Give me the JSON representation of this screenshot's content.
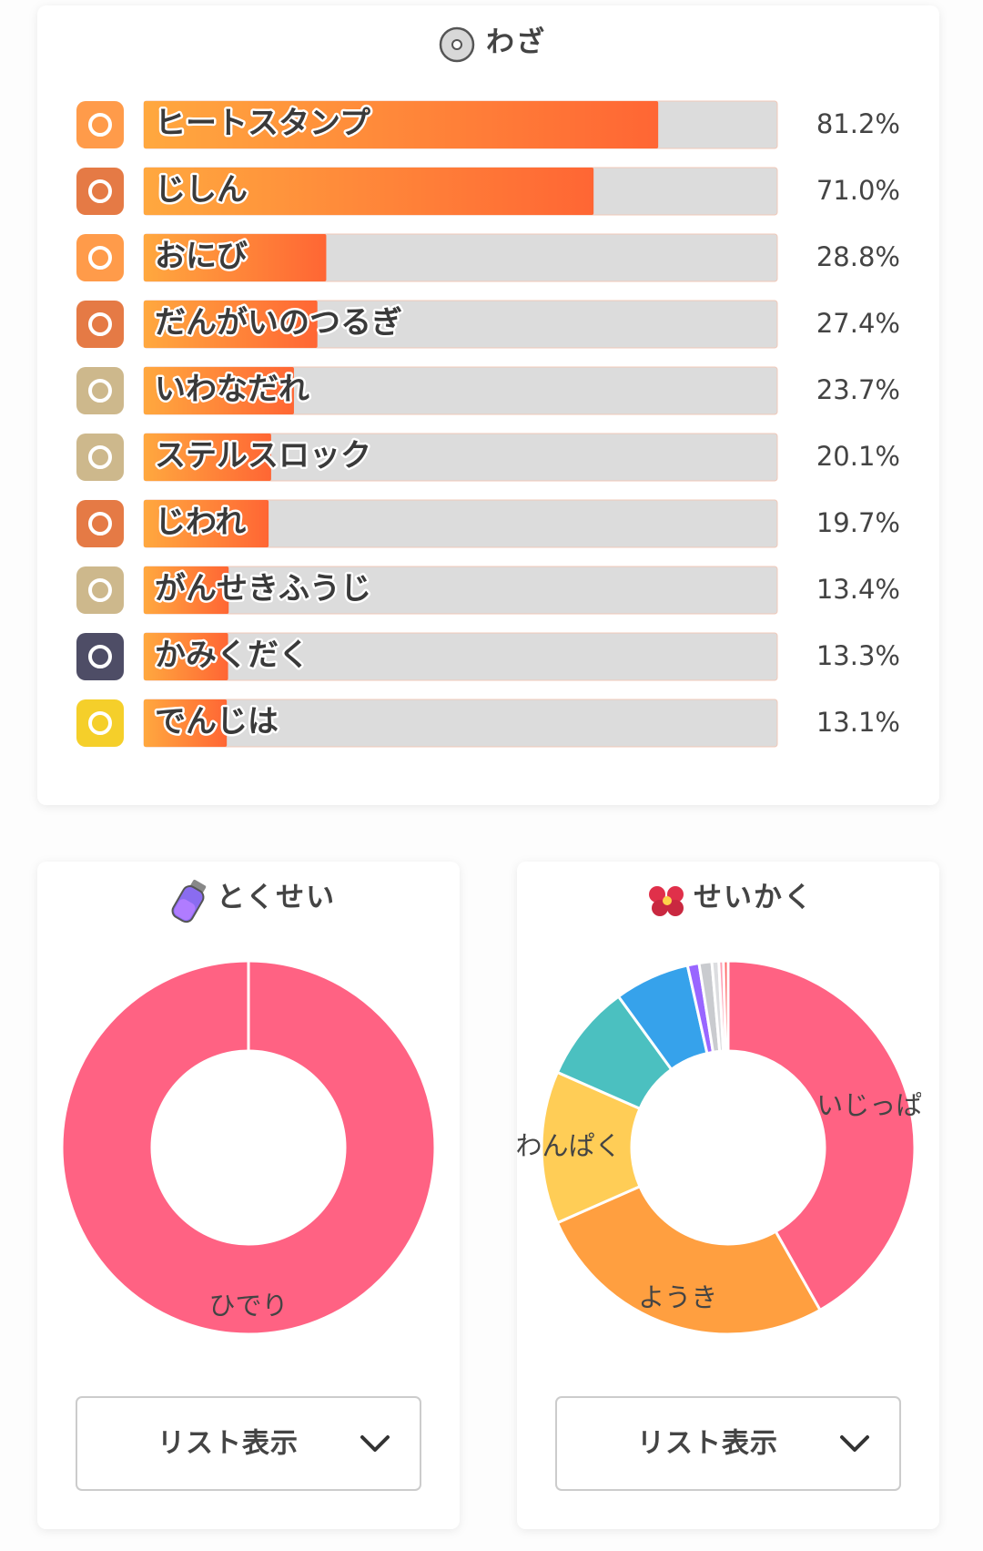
{
  "chart_data": [
    {
      "type": "bar",
      "orientation": "horizontal",
      "title": "わざ",
      "categories": [
        "ヒートスタンプ",
        "じしん",
        "おにび",
        "だんがいのつるぎ",
        "いわなだれ",
        "ステルスロック",
        "じわれ",
        "がんせきふうじ",
        "かみくだく",
        "でんじは"
      ],
      "values": [
        81.2,
        71.0,
        28.8,
        27.4,
        23.7,
        20.1,
        19.7,
        13.4,
        13.3,
        13.1
      ],
      "value_labels": [
        "81.2%",
        "71.0%",
        "28.8%",
        "27.4%",
        "23.7%",
        "20.1%",
        "19.7%",
        "13.4%",
        "13.3%",
        "13.1%"
      ],
      "xlim": [
        0,
        100
      ],
      "color": [
        "#ffa83f",
        "#ff6634"
      ],
      "track_color": "#dcdcdc"
    },
    {
      "type": "pie",
      "donut": true,
      "title": "とくせい",
      "categories": [
        "ひでり"
      ],
      "values": [
        100
      ],
      "colors": [
        "#ff6283"
      ]
    },
    {
      "type": "pie",
      "donut": true,
      "title": "せいかく",
      "categories": [
        "いじっぱり",
        "ようき",
        "わんぱく",
        null,
        null,
        null,
        null,
        null,
        null,
        null
      ],
      "values": [
        41.8,
        26.6,
        13.2,
        8.4,
        6.5,
        1.0,
        1.1,
        0.6,
        0.4,
        0.4
      ],
      "colors": [
        "#ff6283",
        "#ff9f40",
        "#ffcd56",
        "#4bc0c0",
        "#36a2eb",
        "#9966ff",
        "#c9cbcf",
        "#dcdde0",
        "#ff9fb3",
        "#ff6b6b"
      ]
    }
  ],
  "ui": {
    "list_buttons": [
      "リスト表示",
      "リスト表示"
    ]
  }
}
